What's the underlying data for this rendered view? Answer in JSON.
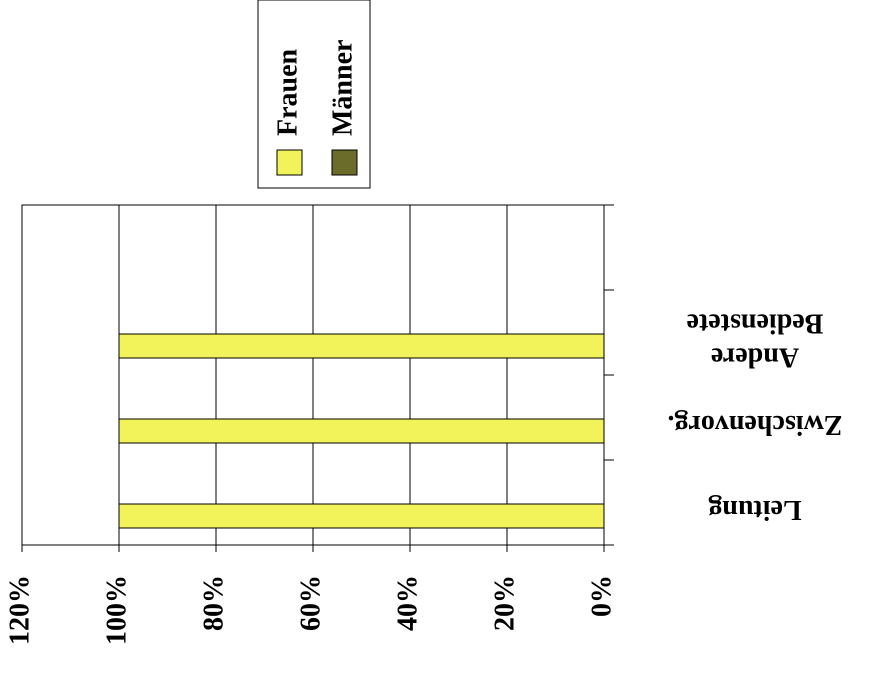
{
  "chart_data": {
    "type": "bar",
    "orientation": "horizontal",
    "categories": [
      "Leitung",
      "Zwischenvorg.",
      "Andere Bedienstete",
      null
    ],
    "series": [
      {
        "name": "Frauen",
        "color": "#f2f25a",
        "values": [
          100,
          100,
          100,
          null
        ]
      },
      {
        "name": "Männer",
        "color": "#6b6b2a",
        "values": [
          0,
          0,
          0,
          null
        ]
      }
    ],
    "xlim": [
      0,
      120
    ],
    "xticks": [
      {
        "value": 0,
        "label": "0%"
      },
      {
        "value": 20,
        "label": "20%"
      },
      {
        "value": 40,
        "label": "40%"
      },
      {
        "value": 60,
        "label": "60%"
      },
      {
        "value": 80,
        "label": "80%"
      },
      {
        "value": 100,
        "label": "100%"
      },
      {
        "value": 120,
        "label": "120%"
      }
    ],
    "grid": true,
    "legend": "top"
  }
}
